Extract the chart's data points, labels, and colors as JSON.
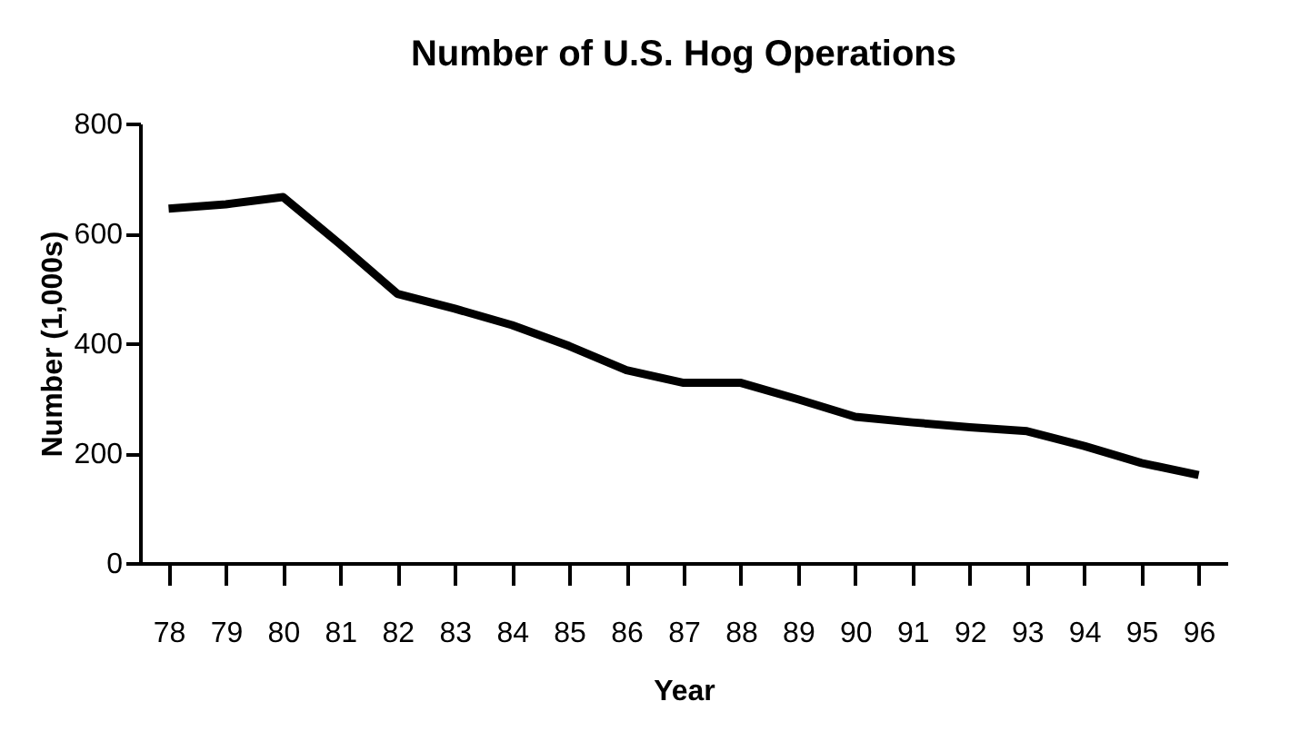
{
  "chart_data": {
    "type": "line",
    "title": "Number of U.S. Hog Operations",
    "xlabel": "Year",
    "ylabel": "Number (1,000s)",
    "categories": [
      "78",
      "79",
      "80",
      "81",
      "82",
      "83",
      "84",
      "85",
      "86",
      "87",
      "88",
      "89",
      "90",
      "91",
      "92",
      "93",
      "94",
      "95",
      "96"
    ],
    "series": [
      {
        "color": "#000000",
        "values": [
          645,
          653,
          666,
          580,
          490,
          463,
          433,
          395,
          351,
          328,
          328,
          298,
          266,
          256,
          247,
          240,
          213,
          182,
          160
        ]
      }
    ],
    "ylim": [
      0,
      800
    ],
    "yticks": [
      0,
      200,
      400,
      600,
      800
    ],
    "grid": false,
    "marker": "none",
    "line_style": "solid"
  }
}
